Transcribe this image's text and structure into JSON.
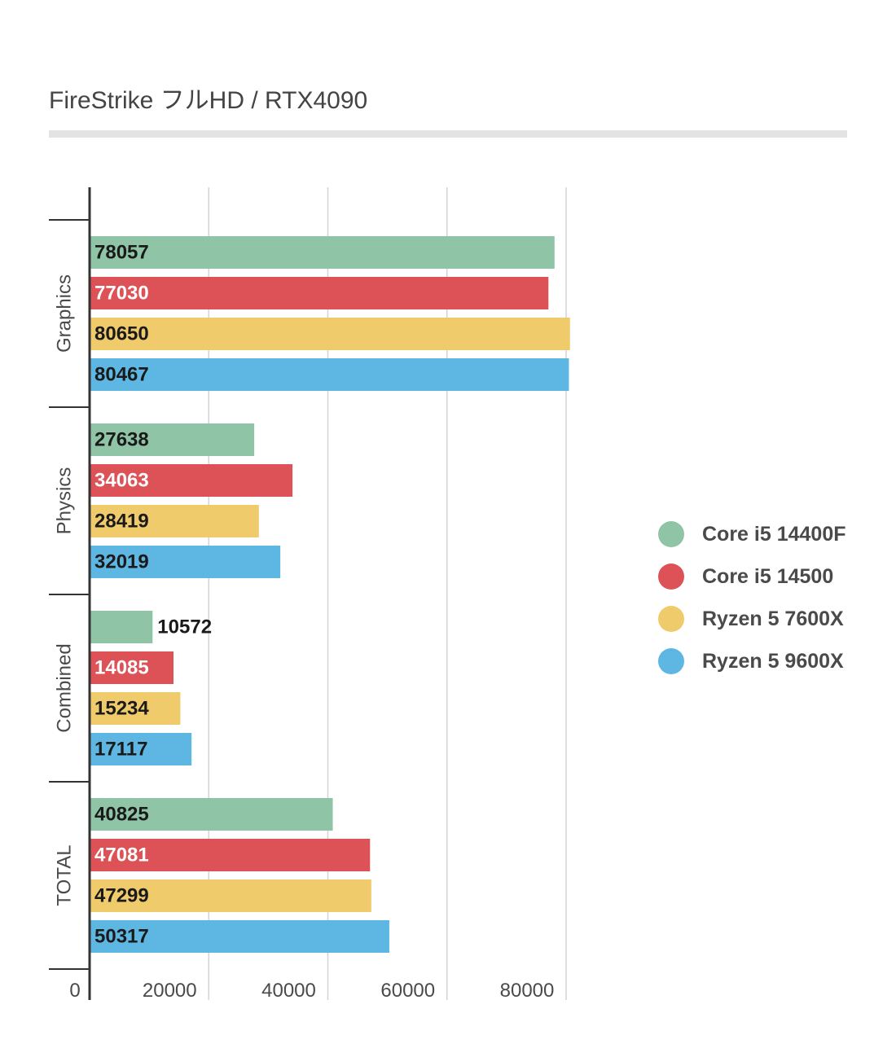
{
  "chart_data": {
    "type": "bar",
    "orientation": "horizontal",
    "title": "FireStrike フルHD / RTX4090",
    "categories": [
      "Graphics",
      "Physics",
      "Combined",
      "TOTAL"
    ],
    "series": [
      {
        "name": "Core i5 14400F",
        "color": "#8fc5a6",
        "values": [
          78057,
          27638,
          10572,
          40825
        ]
      },
      {
        "name": "Core i5 14500",
        "color": "#dd5256",
        "values": [
          77030,
          34063,
          14085,
          47081
        ]
      },
      {
        "name": "Ryzen 5 7600X",
        "color": "#f0cb6c",
        "values": [
          80650,
          28419,
          15234,
          47299
        ]
      },
      {
        "name": "Ryzen 5 9600X",
        "color": "#5eb6e2",
        "values": [
          80467,
          32019,
          17117,
          50317
        ]
      }
    ],
    "x_ticks": [
      "0",
      "20000",
      "40000",
      "60000",
      "80000"
    ],
    "xlim": [
      0,
      81000
    ],
    "grid": true,
    "legend_position": "right"
  }
}
